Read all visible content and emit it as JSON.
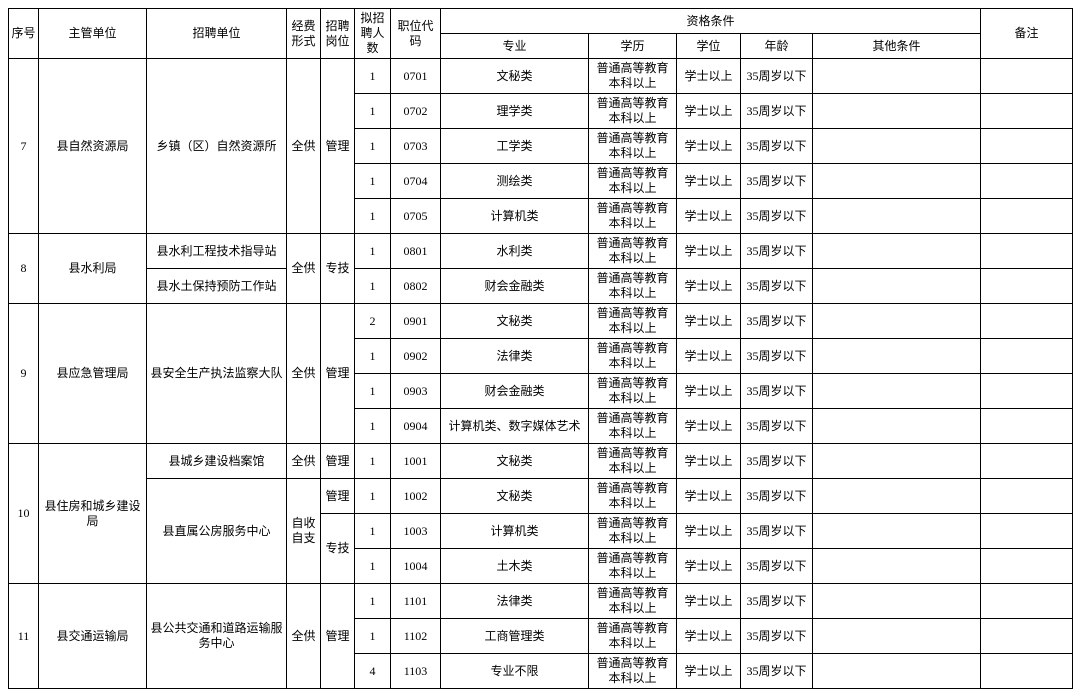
{
  "headers": {
    "seq": "序号",
    "dept": "主管单位",
    "unit": "招聘单位",
    "fund": "经费形式",
    "post": "招聘岗位",
    "num": "拟招聘人数",
    "code": "职位代码",
    "qual": "资格条件",
    "major": "专业",
    "edu": "学历",
    "deg": "学位",
    "age": "年龄",
    "other": "其他条件",
    "note": "备注"
  },
  "fund": {
    "all": "全供",
    "self": "自收自支"
  },
  "post": {
    "mgmt": "管理",
    "tech": "专技"
  },
  "edu_std": "普通高等教育本科以上",
  "deg_std": "学士以上",
  "age_std": "35周岁以下",
  "rows": {
    "r7_dept": "县自然资源局",
    "r7_unit": "乡镇（区）自然资源所",
    "r7_1_num": "1",
    "r7_1_code": "0701",
    "r7_1_major": "文秘类",
    "r7_2_num": "1",
    "r7_2_code": "0702",
    "r7_2_major": "理学类",
    "r7_3_num": "1",
    "r7_3_code": "0703",
    "r7_3_major": "工学类",
    "r7_4_num": "1",
    "r7_4_code": "0704",
    "r7_4_major": "测绘类",
    "r7_5_num": "1",
    "r7_5_code": "0705",
    "r7_5_major": "计算机类",
    "r8_dept": "县水利局",
    "r8_unit1": "县水利工程技术指导站",
    "r8_unit2": "县水土保持预防工作站",
    "r8_1_num": "1",
    "r8_1_code": "0801",
    "r8_1_major": "水利类",
    "r8_2_num": "1",
    "r8_2_code": "0802",
    "r8_2_major": "财会金融类",
    "r9_dept": "县应急管理局",
    "r9_unit": "县安全生产执法监察大队",
    "r9_1_num": "2",
    "r9_1_code": "0901",
    "r9_1_major": "文秘类",
    "r9_2_num": "1",
    "r9_2_code": "0902",
    "r9_2_major": "法律类",
    "r9_3_num": "1",
    "r9_3_code": "0903",
    "r9_3_major": "财会金融类",
    "r9_4_num": "1",
    "r9_4_code": "0904",
    "r9_4_major": "计算机类、数字媒体艺术",
    "r10_dept": "县住房和城乡建设局",
    "r10_unit1": "县城乡建设档案馆",
    "r10_unit2": "县直属公房服务中心",
    "r10_1_num": "1",
    "r10_1_code": "1001",
    "r10_1_major": "文秘类",
    "r10_2_num": "1",
    "r10_2_code": "1002",
    "r10_2_major": "文秘类",
    "r10_3_num": "1",
    "r10_3_code": "1003",
    "r10_3_major": "计算机类",
    "r10_4_num": "1",
    "r10_4_code": "1004",
    "r10_4_major": "土木类",
    "r11_dept": "县交通运输局",
    "r11_unit": "县公共交通和道路运输服务中心",
    "r11_1_num": "1",
    "r11_1_code": "1101",
    "r11_1_major": "法律类",
    "r11_2_num": "1",
    "r11_2_code": "1102",
    "r11_2_major": "工商管理类",
    "r11_3_num": "4",
    "r11_3_code": "1103",
    "r11_3_major": "专业不限"
  },
  "seq": {
    "s7": "7",
    "s8": "8",
    "s9": "9",
    "s10": "10",
    "s11": "11"
  }
}
